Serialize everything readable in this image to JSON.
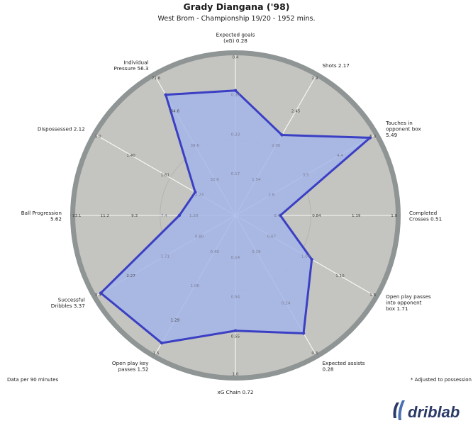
{
  "header": {
    "title": "Grady Diangana ('98)",
    "subtitle": "West Brom - Championship 19/20 - 1952 mins."
  },
  "footer": {
    "left_note": "Data per 90 minutes",
    "right_note": "* Adjusted to possession"
  },
  "logo": {
    "text": "driblab",
    "icon": "driblab-logo-icon"
  },
  "colors": {
    "outer_ring": "#8f9494",
    "plot_bg": "#c4c4c0",
    "fill": "#a4b5e9",
    "stroke": "#3a3fc4",
    "grid": "#ffffff"
  },
  "chart_data": {
    "type": "radar",
    "title": "Grady Diangana ('98)",
    "subtitle": "West Brom - Championship 19/20 - 1952 mins.",
    "axes": [
      {
        "label": [
          "Expected goals",
          "(xG) 0.28"
        ],
        "value": 0.28,
        "ticks": [
          "0.17",
          "0.23",
          "0.30",
          "0.4"
        ],
        "inner_ticks": [
          0,
          1,
          2
        ]
      },
      {
        "label": [
          "Shots 2.17"
        ],
        "value": 2.17,
        "ticks": [
          "1.54",
          "2.00",
          "2.45",
          "2.9"
        ],
        "inner_ticks": [
          0,
          1
        ]
      },
      {
        "label": [
          "Touches in",
          "opponent box",
          "5.49"
        ],
        "value": 5.49,
        "ticks": [
          "2.6",
          "3.5",
          "4.4",
          "5.3"
        ],
        "inner_ticks": [
          0,
          1,
          2
        ]
      },
      {
        "label": [
          "Completed",
          "Crosses 0.51"
        ],
        "value": 0.51,
        "ticks": [
          "0.4",
          "0.84",
          "1.19",
          "1.8"
        ],
        "inner_ticks": [
          0
        ]
      },
      {
        "label": [
          "Open play passes",
          "into opponent",
          "box 1.71"
        ],
        "value": 1.71,
        "ticks": [
          "0.67",
          "1.00",
          "1.10",
          "1.6"
        ],
        "inner_ticks": [
          0,
          1
        ]
      },
      {
        "label": [
          "Expected assists",
          "0.28"
        ],
        "value": 0.28,
        "ticks": [
          "0.19",
          "0.24",
          "0.3"
        ],
        "inner_ticks": [
          0,
          1
        ]
      },
      {
        "label": [
          "xG Chain 0.72"
        ],
        "value": 0.72,
        "ticks": [
          "0.14",
          "0.54",
          "0.55",
          "1.0"
        ],
        "inner_ticks": [
          0,
          1
        ]
      },
      {
        "label": [
          "Open play key",
          "passes 1.52"
        ],
        "value": 1.52,
        "ticks": [
          "0.49",
          "1.06",
          "1.29",
          "1.5"
        ],
        "inner_ticks": [
          0,
          1
        ]
      },
      {
        "label": [
          "Successful",
          "Dribbles 3.37"
        ],
        "value": 3.37,
        "ticks": [
          "0.80",
          "1.71",
          "2.27",
          "3.3"
        ],
        "inner_ticks": [
          0,
          1
        ]
      },
      {
        "label": [
          "Ball Progression",
          "5.62"
        ],
        "value": 5.62,
        "ticks": [
          "1.20",
          "7.4",
          "9.3",
          "11.2",
          "13.1"
        ],
        "inner_ticks": [
          0,
          1
        ]
      },
      {
        "label": [
          "Dispossessed 2.12"
        ],
        "value": 2.12,
        "ticks": [
          "2.23",
          "1.61",
          "1.40",
          "1.0"
        ],
        "inner_ticks": [
          0
        ]
      },
      {
        "label": [
          "Individual",
          "Pressure 56.3"
        ],
        "value": 56.3,
        "ticks": [
          "32.6",
          "39.6",
          "64.6",
          "71.6"
        ],
        "inner_ticks": [
          0,
          1
        ]
      }
    ],
    "percentiles": [
      0.78,
      0.58,
      0.97,
      0.28,
      0.55,
      0.85,
      0.72,
      0.92,
      0.97,
      0.35,
      0.29,
      0.87
    ]
  }
}
